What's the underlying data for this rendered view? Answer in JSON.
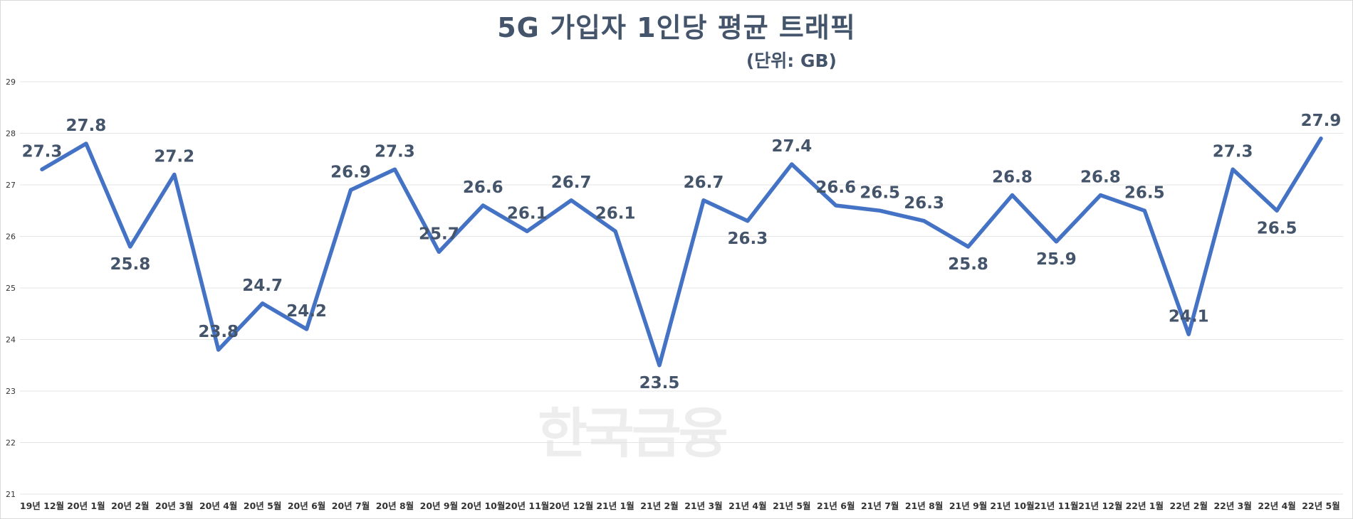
{
  "title": "5G 가입자 1인당 평균 트래픽",
  "subtitle": "(단위: GB)",
  "watermark": "한국금융",
  "colors": {
    "line": "#4472c4",
    "label": "#44546a",
    "grid": "#e4e4e4",
    "tick": "#333333"
  },
  "chart_data": {
    "type": "line",
    "title": "5G 가입자 1인당 평균 트래픽",
    "unit": "(단위: GB)",
    "categories": [
      "19년 12월",
      "20년 1월",
      "20년 2월",
      "20년 3월",
      "20년 4월",
      "20년 5월",
      "20년 6월",
      "20년 7월",
      "20년 8월",
      "20년 9월",
      "20년 10월",
      "20년 11월",
      "20년 12월",
      "21년 1월",
      "21년 2월",
      "21년 3월",
      "21년 4월",
      "21년 5월",
      "21년 6월",
      "21년 7월",
      "21년 8월",
      "21년 9월",
      "21년 10월",
      "21년 11월",
      "21년 12월",
      "22년 1월",
      "22년 2월",
      "22년 3월",
      "22년 4월",
      "22년 5월"
    ],
    "series": [
      {
        "values": [
          27.3,
          27.8,
          25.8,
          27.2,
          23.8,
          24.7,
          24.2,
          26.9,
          27.3,
          25.7,
          26.6,
          26.1,
          26.7,
          26.1,
          23.5,
          26.7,
          26.3,
          27.4,
          26.6,
          26.5,
          26.3,
          25.8,
          26.8,
          25.9,
          26.8,
          26.5,
          24.1,
          27.3,
          26.5,
          27.9
        ]
      }
    ],
    "label_positions": [
      "above",
      "above",
      "below",
      "above",
      "above",
      "above",
      "above",
      "above",
      "above",
      "above",
      "above",
      "above",
      "above",
      "above",
      "below",
      "above",
      "below",
      "above",
      "above",
      "above",
      "above",
      "below",
      "above",
      "below",
      "above",
      "above",
      "above",
      "above",
      "below",
      "above"
    ],
    "ylim": [
      21,
      29
    ],
    "yticks": [
      21,
      22,
      23,
      24,
      25,
      26,
      27,
      28,
      29
    ],
    "grid": true,
    "legend": "none"
  }
}
